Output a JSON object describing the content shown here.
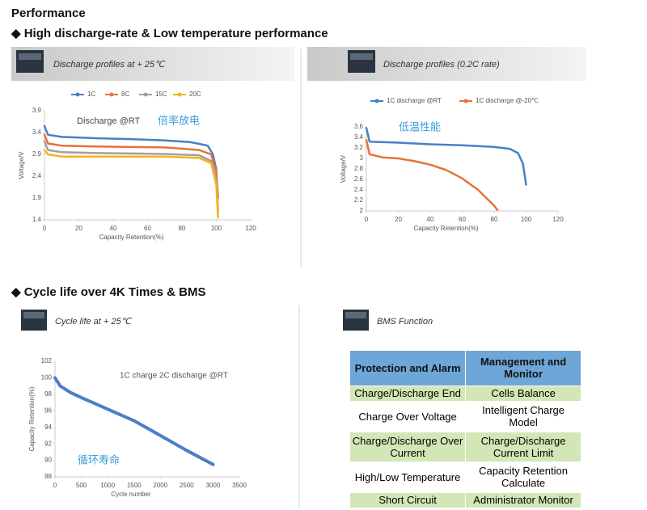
{
  "heading": "Performance",
  "section1": "◆ High discharge-rate & Low temperature performance",
  "section2": "◆ Cycle life over 4K Times & BMS",
  "captions": [
    "Discharge profiles at + 25℃",
    "Discharge profiles (0.2C rate)",
    "Cycle life at + 25℃",
    "BMS Function"
  ],
  "chart_data": [
    {
      "type": "line",
      "ylabel": "Voltage/V",
      "xlabel": "Capacity Retention(%)",
      "annotations": [
        "Discharge @RT",
        "倍率放电"
      ],
      "xlim": [
        0,
        120
      ],
      "xticks": [
        0,
        20,
        40,
        60,
        80,
        100,
        120
      ],
      "ylim": [
        1.4,
        3.9
      ],
      "yticks": [
        1.4,
        1.9,
        2.4,
        2.9,
        3.4,
        3.9
      ],
      "grid": false,
      "series": [
        {
          "name": "1C",
          "color": "#4a7fc8",
          "x": [
            0,
            2,
            10,
            30,
            50,
            70,
            85,
            95,
            98,
            100
          ],
          "values": [
            3.55,
            3.35,
            3.3,
            3.27,
            3.25,
            3.22,
            3.18,
            3.1,
            2.9,
            2.55
          ]
        },
        {
          "name": "8C",
          "color": "#e8703a",
          "x": [
            0,
            2,
            10,
            30,
            50,
            70,
            90,
            97,
            100,
            101
          ],
          "values": [
            3.35,
            3.15,
            3.1,
            3.08,
            3.07,
            3.06,
            3.0,
            2.9,
            2.5,
            1.9
          ]
        },
        {
          "name": "15C",
          "color": "#a0a0a0",
          "x": [
            0,
            2,
            10,
            30,
            50,
            70,
            90,
            97,
            100,
            101
          ],
          "values": [
            3.2,
            3.0,
            2.95,
            2.93,
            2.92,
            2.91,
            2.88,
            2.75,
            2.3,
            1.6
          ]
        },
        {
          "name": "20C",
          "color": "#f2b31c",
          "x": [
            0,
            2,
            10,
            30,
            50,
            70,
            90,
            97,
            100,
            101
          ],
          "values": [
            3.0,
            2.9,
            2.85,
            2.85,
            2.85,
            2.85,
            2.82,
            2.7,
            2.2,
            1.45
          ]
        }
      ]
    },
    {
      "type": "line",
      "ylabel": "Voltage/V",
      "xlabel": "Capacity Retention(%)",
      "annotations": [
        "低温性能"
      ],
      "xlim": [
        0,
        120
      ],
      "xticks": [
        0,
        20,
        40,
        60,
        80,
        100,
        120
      ],
      "ylim": [
        2,
        3.6
      ],
      "yticks": [
        2,
        2.2,
        2.4,
        2.6,
        2.8,
        3,
        3.2,
        3.4,
        3.6
      ],
      "grid": false,
      "series": [
        {
          "name": "1C discharge @RT",
          "color": "#4a7fc8",
          "x": [
            0,
            2,
            20,
            40,
            60,
            80,
            90,
            95,
            98,
            100
          ],
          "values": [
            3.58,
            3.32,
            3.3,
            3.27,
            3.25,
            3.22,
            3.18,
            3.1,
            2.9,
            2.5
          ]
        },
        {
          "name": "1C discharge @-20℃",
          "color": "#e8703a",
          "x": [
            0,
            2,
            10,
            20,
            30,
            40,
            50,
            60,
            70,
            75,
            80,
            82
          ],
          "values": [
            3.35,
            3.08,
            3.02,
            3.0,
            2.95,
            2.88,
            2.78,
            2.62,
            2.4,
            2.25,
            2.1,
            2.02
          ]
        }
      ]
    },
    {
      "type": "line",
      "ylabel": "Capacity Retention(%)",
      "xlabel": "Cycle number",
      "annotations": [
        "1C charge 2C discharge @RT",
        "循环寿命"
      ],
      "xlim": [
        0,
        3500
      ],
      "xticks": [
        0,
        500,
        1000,
        1500,
        2000,
        2500,
        3000,
        3500
      ],
      "ylim": [
        88,
        102
      ],
      "yticks": [
        88,
        90,
        92,
        94,
        96,
        98,
        100,
        102
      ],
      "grid": false,
      "series": [
        {
          "color": "#4a7fc8",
          "x": [
            0,
            100,
            300,
            500,
            1000,
            1500,
            2000,
            2500,
            3000
          ],
          "values": [
            100,
            99,
            98.2,
            97.6,
            96.2,
            94.8,
            93,
            91.2,
            89.5
          ]
        }
      ]
    }
  ],
  "table": {
    "header": [
      "Protection and Alarm",
      "Management and Monitor"
    ],
    "rows": [
      [
        "Charge/Discharge End",
        "Cells Balance"
      ],
      [
        "Charge Over Voltage",
        "Intelligent Charge Model"
      ],
      [
        "Charge/Discharge Over Current",
        "Charge/Discharge Current Limit"
      ],
      [
        "High/Low Temperature",
        "Capacity Retention Calculate"
      ],
      [
        "Short Circuit",
        "Administrator Monitor"
      ]
    ]
  }
}
